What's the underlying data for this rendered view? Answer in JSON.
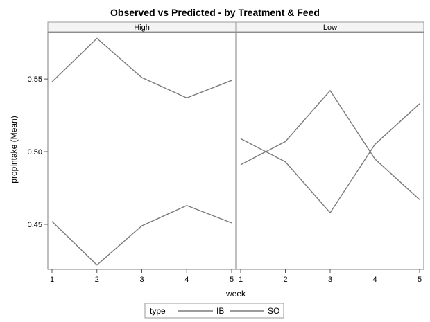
{
  "chart_data": {
    "type": "line",
    "title": "Observed vs Predicted - by Treatment & Feed",
    "xlabel": "week",
    "ylabel": "propintake (Mean)",
    "x": [
      1,
      2,
      3,
      4,
      5
    ],
    "xlim": [
      1,
      5
    ],
    "ylim": [
      0.419,
      0.582
    ],
    "yticks": [
      "0.45",
      "0.50",
      "0.55"
    ],
    "ytick_values": [
      0.45,
      0.5,
      0.55
    ],
    "xticks": [
      "1",
      "2",
      "3",
      "4",
      "5"
    ],
    "grid": false,
    "line_color": "#7a7a7a",
    "panels": [
      {
        "label": "High",
        "series": [
          {
            "name": "IB",
            "values": [
              0.548,
              0.578,
              0.551,
              0.537,
              0.549
            ]
          },
          {
            "name": "SO",
            "values": [
              0.452,
              0.422,
              0.449,
              0.463,
              0.451
            ]
          }
        ]
      },
      {
        "label": "Low",
        "series": [
          {
            "name": "IB",
            "values": [
              0.491,
              0.507,
              0.542,
              0.495,
              0.467
            ]
          },
          {
            "name": "SO",
            "values": [
              0.509,
              0.493,
              0.458,
              0.505,
              0.533
            ]
          }
        ]
      }
    ],
    "legend": {
      "title": "type",
      "entries": [
        "IB",
        "SO"
      ],
      "position": "bottom"
    }
  }
}
